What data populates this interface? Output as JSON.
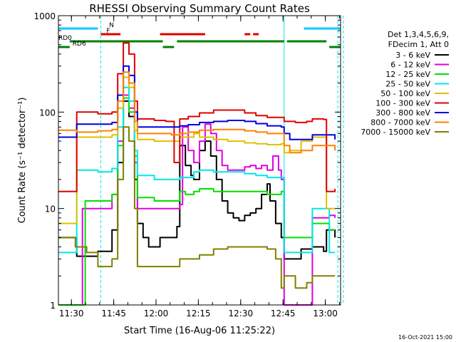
{
  "chart_data": {
    "type": "line",
    "title": "RHESSI Observing Summary Count Rates",
    "xlabel": "Start Time (16-Aug-06 11:25:22)",
    "ylabel": "Count Rate (s⁻¹ detector⁻¹)",
    "x_unit": "minutes after 11:25:22 UT",
    "xlim": [
      0,
      100
    ],
    "ylim": [
      1,
      1000
    ],
    "y_scale": "log",
    "grid": false,
    "legend_placement": "right",
    "x_tick_labels": [
      "11:30",
      "11:45",
      "12:00",
      "12:15",
      "12:30",
      "12:45",
      "13:00"
    ],
    "x_tick_values": [
      4.6,
      19.6,
      34.6,
      49.6,
      64.6,
      79.6,
      94.6
    ],
    "y_tick_labels": [
      "1",
      "10",
      "100",
      "1000"
    ],
    "y_tick_values": [
      1,
      10,
      100,
      1000
    ],
    "legend_header": [
      "Det 1,3,4,5,6,9,",
      "FDecim 1, Att 0"
    ],
    "footer_date": "16-Oct-2021 15:00",
    "flags": [
      {
        "name": "N",
        "color": "#00c8ff",
        "segments": [
          [
            0,
            14
          ],
          [
            87,
            100
          ]
        ]
      },
      {
        "name": "F",
        "color": "#e00000",
        "segments": [
          [
            15,
            22
          ],
          [
            36,
            52
          ],
          [
            66,
            68
          ],
          [
            69,
            71
          ]
        ]
      },
      {
        "name": "RD0",
        "color": "#008000",
        "segments": [
          [
            4,
            37
          ],
          [
            42,
            80
          ],
          [
            81,
            95
          ]
        ]
      },
      {
        "name": "RD6",
        "color": "#008000",
        "segments": [
          [
            0,
            4
          ],
          [
            37,
            41
          ],
          [
            96,
            100
          ]
        ]
      }
    ],
    "series": [
      {
        "name": "3 - 6 keV",
        "color": "#000000",
        "points": [
          [
            0,
            5
          ],
          [
            6,
            5
          ],
          [
            6.5,
            3.2
          ],
          [
            14,
            3.6
          ],
          [
            19,
            6
          ],
          [
            21,
            30
          ],
          [
            23,
            130
          ],
          [
            25,
            90
          ],
          [
            27,
            20
          ],
          [
            28,
            7
          ],
          [
            30,
            5
          ],
          [
            32,
            4
          ],
          [
            36,
            5
          ],
          [
            40,
            5
          ],
          [
            42,
            6.5
          ],
          [
            43,
            45
          ],
          [
            45,
            28
          ],
          [
            47,
            22
          ],
          [
            48,
            20
          ],
          [
            50,
            40
          ],
          [
            52,
            50
          ],
          [
            54,
            35
          ],
          [
            56,
            20
          ],
          [
            58,
            12
          ],
          [
            60,
            9
          ],
          [
            62,
            8
          ],
          [
            64,
            7.5
          ],
          [
            66,
            8.5
          ],
          [
            68,
            9
          ],
          [
            70,
            10
          ],
          [
            72,
            14
          ],
          [
            74,
            18
          ],
          [
            75,
            12
          ],
          [
            77,
            7
          ],
          [
            79,
            5
          ],
          [
            80,
            3
          ],
          [
            84,
            3
          ],
          [
            86,
            3.8
          ],
          [
            90,
            4
          ],
          [
            94,
            3.6
          ],
          [
            95,
            6
          ],
          [
            98,
            5
          ]
        ]
      },
      {
        "name": "6 - 12 keV",
        "color": "#e000e0",
        "points": [
          [
            0,
            1
          ],
          [
            8,
            1
          ],
          [
            8.5,
            10
          ],
          [
            14,
            10
          ],
          [
            19,
            14
          ],
          [
            21,
            50
          ],
          [
            23,
            150
          ],
          [
            25,
            110
          ],
          [
            27,
            30
          ],
          [
            28,
            10
          ],
          [
            34,
            10
          ],
          [
            40,
            10
          ],
          [
            43,
            11
          ],
          [
            44,
            70
          ],
          [
            46,
            40
          ],
          [
            48,
            30
          ],
          [
            50,
            50
          ],
          [
            52,
            75
          ],
          [
            54,
            60
          ],
          [
            56,
            40
          ],
          [
            58,
            28
          ],
          [
            60,
            25
          ],
          [
            63,
            25
          ],
          [
            66,
            27
          ],
          [
            68,
            28
          ],
          [
            70,
            26
          ],
          [
            72,
            28
          ],
          [
            74,
            25
          ],
          [
            76,
            35
          ],
          [
            78,
            25
          ],
          [
            79,
            20
          ],
          [
            80,
            1
          ],
          [
            88,
            1
          ],
          [
            90,
            8
          ],
          [
            94,
            8
          ],
          [
            96,
            8.5
          ],
          [
            98,
            8
          ]
        ]
      },
      {
        "name": "12 - 25 keV",
        "color": "#00e000",
        "points": [
          [
            0,
            1
          ],
          [
            9,
            1
          ],
          [
            9.5,
            12
          ],
          [
            14,
            12
          ],
          [
            19,
            14
          ],
          [
            21,
            45
          ],
          [
            23,
            140
          ],
          [
            25,
            100
          ],
          [
            27,
            35
          ],
          [
            28,
            13
          ],
          [
            34,
            12
          ],
          [
            40,
            12
          ],
          [
            42,
            12
          ],
          [
            43,
            15
          ],
          [
            45,
            14
          ],
          [
            47,
            14
          ],
          [
            48,
            15
          ],
          [
            50,
            16
          ],
          [
            55,
            15
          ],
          [
            60,
            15
          ],
          [
            66,
            15
          ],
          [
            70,
            15
          ],
          [
            74,
            14
          ],
          [
            79,
            15
          ],
          [
            80,
            5
          ],
          [
            88,
            5
          ],
          [
            90,
            7
          ],
          [
            94,
            7
          ],
          [
            96,
            6
          ],
          [
            98,
            6
          ]
        ]
      },
      {
        "name": "25 - 50 keV",
        "color": "#00e8e8",
        "points": [
          [
            0,
            3.5
          ],
          [
            6,
            3.5
          ],
          [
            6.5,
            25
          ],
          [
            14,
            24
          ],
          [
            19,
            26
          ],
          [
            21,
            70
          ],
          [
            23,
            180
          ],
          [
            25,
            130
          ],
          [
            27,
            40
          ],
          [
            28,
            22
          ],
          [
            34,
            20
          ],
          [
            40,
            20
          ],
          [
            43,
            21
          ],
          [
            45,
            21
          ],
          [
            48,
            24
          ],
          [
            50,
            25
          ],
          [
            55,
            24
          ],
          [
            60,
            24
          ],
          [
            66,
            23
          ],
          [
            70,
            22
          ],
          [
            74,
            21
          ],
          [
            79,
            21
          ],
          [
            80,
            3.5
          ],
          [
            88,
            3.5
          ],
          [
            90,
            10
          ],
          [
            94,
            10
          ],
          [
            96,
            3.5
          ],
          [
            98,
            3.5
          ]
        ]
      },
      {
        "name": "50 - 100 keV",
        "color": "#e0c000",
        "points": [
          [
            0,
            7
          ],
          [
            6,
            7
          ],
          [
            6.5,
            55
          ],
          [
            14,
            55
          ],
          [
            19,
            58
          ],
          [
            21,
            110
          ],
          [
            23,
            230
          ],
          [
            25,
            180
          ],
          [
            27,
            65
          ],
          [
            28,
            52
          ],
          [
            34,
            50
          ],
          [
            40,
            50
          ],
          [
            42,
            50
          ],
          [
            43,
            55
          ],
          [
            45,
            55
          ],
          [
            48,
            60
          ],
          [
            50,
            55
          ],
          [
            55,
            52
          ],
          [
            60,
            50
          ],
          [
            66,
            48
          ],
          [
            70,
            47
          ],
          [
            74,
            46
          ],
          [
            79,
            47
          ],
          [
            80,
            38
          ],
          [
            82,
            40
          ],
          [
            86,
            50
          ],
          [
            90,
            55
          ],
          [
            94,
            55
          ],
          [
            95,
            10
          ],
          [
            98,
            10
          ]
        ]
      },
      {
        "name": "100 - 300 keV",
        "color": "#e00000",
        "points": [
          [
            0,
            15
          ],
          [
            6,
            15
          ],
          [
            6.5,
            100
          ],
          [
            14,
            96
          ],
          [
            19,
            100
          ],
          [
            21,
            250
          ],
          [
            23,
            520
          ],
          [
            25,
            400
          ],
          [
            27,
            130
          ],
          [
            28,
            85
          ],
          [
            34,
            82
          ],
          [
            38,
            80
          ],
          [
            40,
            80
          ],
          [
            41,
            30
          ],
          [
            42,
            30
          ],
          [
            43,
            85
          ],
          [
            46,
            90
          ],
          [
            50,
            98
          ],
          [
            55,
            105
          ],
          [
            60,
            105
          ],
          [
            66,
            98
          ],
          [
            70,
            92
          ],
          [
            74,
            88
          ],
          [
            79,
            88
          ],
          [
            80,
            80
          ],
          [
            84,
            78
          ],
          [
            88,
            80
          ],
          [
            90,
            85
          ],
          [
            94,
            84
          ],
          [
            95,
            15
          ],
          [
            98,
            16
          ]
        ]
      },
      {
        "name": "300 - 800 keV",
        "color": "#0000e0",
        "points": [
          [
            0,
            55
          ],
          [
            6,
            55
          ],
          [
            6.5,
            75
          ],
          [
            14,
            75
          ],
          [
            19,
            78
          ],
          [
            21,
            150
          ],
          [
            23,
            300
          ],
          [
            25,
            240
          ],
          [
            27,
            100
          ],
          [
            28,
            70
          ],
          [
            34,
            70
          ],
          [
            40,
            70
          ],
          [
            43,
            72
          ],
          [
            46,
            74
          ],
          [
            50,
            78
          ],
          [
            55,
            80
          ],
          [
            60,
            82
          ],
          [
            66,
            80
          ],
          [
            70,
            76
          ],
          [
            74,
            72
          ],
          [
            79,
            70
          ],
          [
            80,
            60
          ],
          [
            82,
            52
          ],
          [
            86,
            52
          ],
          [
            90,
            58
          ],
          [
            94,
            58
          ],
          [
            98,
            52
          ]
        ]
      },
      {
        "name": "800 - 7000 keV",
        "color": "#ff8000",
        "points": [
          [
            0,
            65
          ],
          [
            6,
            65
          ],
          [
            6.5,
            62
          ],
          [
            14,
            64
          ],
          [
            19,
            66
          ],
          [
            21,
            130
          ],
          [
            23,
            260
          ],
          [
            25,
            200
          ],
          [
            27,
            80
          ],
          [
            28,
            60
          ],
          [
            34,
            60
          ],
          [
            40,
            58
          ],
          [
            43,
            60
          ],
          [
            46,
            62
          ],
          [
            50,
            65
          ],
          [
            55,
            66
          ],
          [
            60,
            66
          ],
          [
            66,
            64
          ],
          [
            70,
            62
          ],
          [
            74,
            60
          ],
          [
            79,
            60
          ],
          [
            80,
            45
          ],
          [
            82,
            38
          ],
          [
            86,
            40
          ],
          [
            90,
            45
          ],
          [
            94,
            45
          ],
          [
            98,
            40
          ]
        ]
      },
      {
        "name": "7000 - 15000 keV",
        "color": "#808000",
        "points": [
          [
            0,
            5
          ],
          [
            6,
            4
          ],
          [
            10,
            3.5
          ],
          [
            14,
            2.5
          ],
          [
            19,
            3
          ],
          [
            21,
            20
          ],
          [
            23,
            70
          ],
          [
            25,
            50
          ],
          [
            27,
            10
          ],
          [
            28,
            2.5
          ],
          [
            32,
            2.5
          ],
          [
            36,
            2.5
          ],
          [
            40,
            2.5
          ],
          [
            43,
            3
          ],
          [
            46,
            3
          ],
          [
            50,
            3.3
          ],
          [
            55,
            3.8
          ],
          [
            60,
            4
          ],
          [
            66,
            4
          ],
          [
            70,
            4
          ],
          [
            74,
            3.8
          ],
          [
            77,
            3
          ],
          [
            79,
            1.5
          ],
          [
            80,
            2
          ],
          [
            84,
            1.5
          ],
          [
            88,
            1.7
          ],
          [
            90,
            2
          ],
          [
            94,
            2
          ],
          [
            98,
            2
          ]
        ]
      }
    ]
  }
}
